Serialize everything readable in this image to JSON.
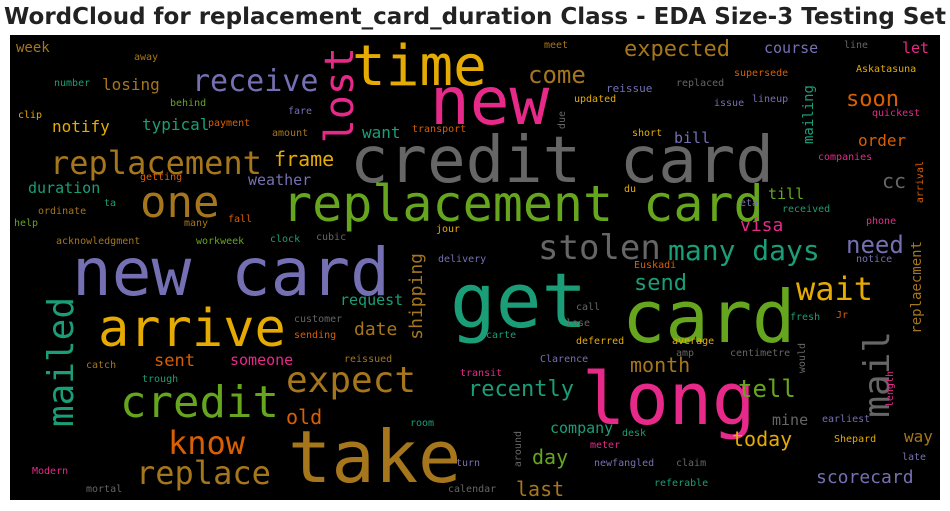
{
  "title": "WordCloud for replacement_card_duration Class - EDA Size-3 Testing Set",
  "palette": {
    "background": "#000000",
    "pink": "#e7298a",
    "orange": "#e6ab02",
    "brown": "#a6761d",
    "gray": "#666666",
    "purple": "#7570b3",
    "green": "#66a61e",
    "teal": "#1b9e77",
    "red": "#d95f02"
  },
  "words": [
    {
      "text": "credit card",
      "color": "#666666"
    },
    {
      "text": "new card",
      "color": "#7570b3"
    },
    {
      "text": "card",
      "color": "#66a61e"
    },
    {
      "text": "get",
      "color": "#1b9e77"
    },
    {
      "text": "take",
      "color": "#a6761d"
    },
    {
      "text": "long",
      "color": "#e7298a"
    },
    {
      "text": "new",
      "color": "#e7298a"
    },
    {
      "text": "replacement card",
      "color": "#66a61e"
    },
    {
      "text": "time",
      "color": "#e6ab02"
    },
    {
      "text": "arrive",
      "color": "#e6ab02"
    },
    {
      "text": "lost",
      "color": "#e7298a"
    },
    {
      "text": "credit",
      "color": "#66a61e"
    },
    {
      "text": "expect",
      "color": "#a6761d"
    },
    {
      "text": "one",
      "color": "#a6761d"
    },
    {
      "text": "stolen",
      "color": "#666666"
    },
    {
      "text": "replacement",
      "color": "#a6761d"
    },
    {
      "text": "replace",
      "color": "#a6761d"
    },
    {
      "text": "mailed",
      "color": "#1b9e77"
    },
    {
      "text": "know",
      "color": "#d95f02"
    },
    {
      "text": "receive",
      "color": "#7570b3"
    },
    {
      "text": "many days",
      "color": "#1b9e77"
    },
    {
      "text": "wait",
      "color": "#e6ab02"
    },
    {
      "text": "mail",
      "color": "#666666"
    },
    {
      "text": "come",
      "color": "#a6761d"
    },
    {
      "text": "expected",
      "color": "#a6761d"
    },
    {
      "text": "soon",
      "color": "#d95f02"
    },
    {
      "text": "need",
      "color": "#7570b3"
    },
    {
      "text": "recently",
      "color": "#1b9e77"
    },
    {
      "text": "tell",
      "color": "#66a61e"
    },
    {
      "text": "month",
      "color": "#a6761d"
    },
    {
      "text": "send",
      "color": "#1b9e77"
    },
    {
      "text": "frame",
      "color": "#e6ab02"
    },
    {
      "text": "scorecard",
      "color": "#7570b3"
    },
    {
      "text": "today",
      "color": "#e6ab02"
    },
    {
      "text": "last",
      "color": "#a6761d"
    },
    {
      "text": "day",
      "color": "#66a61e"
    },
    {
      "text": "shipping",
      "color": "#a6761d"
    },
    {
      "text": "old",
      "color": "#d95f02"
    },
    {
      "text": "visa",
      "color": "#e7298a"
    },
    {
      "text": "cc",
      "color": "#666666"
    },
    {
      "text": "losing",
      "color": "#a6761d"
    },
    {
      "text": "notify",
      "color": "#e6ab02"
    },
    {
      "text": "typical",
      "color": "#1b9e77"
    },
    {
      "text": "duration",
      "color": "#1b9e77"
    },
    {
      "text": "weather",
      "color": "#7570b3"
    },
    {
      "text": "date",
      "color": "#a6761d"
    },
    {
      "text": "sent",
      "color": "#d95f02"
    },
    {
      "text": "someone",
      "color": "#e7298a"
    },
    {
      "text": "request",
      "color": "#1b9e77"
    },
    {
      "text": "want",
      "color": "#1b9e77"
    },
    {
      "text": "course",
      "color": "#7570b3"
    },
    {
      "text": "let",
      "color": "#e7298a"
    },
    {
      "text": "order",
      "color": "#d95f02"
    },
    {
      "text": "bill",
      "color": "#7570b3"
    },
    {
      "text": "till",
      "color": "#66a61e"
    },
    {
      "text": "mine",
      "color": "#666666"
    },
    {
      "text": "way",
      "color": "#a6761d"
    },
    {
      "text": "company",
      "color": "#1b9e77"
    },
    {
      "text": "week",
      "color": "#a6761d"
    },
    {
      "text": "mailing",
      "color": "#1b9e77"
    },
    {
      "text": "replaecment",
      "color": "#a6761d"
    },
    {
      "text": "away",
      "color": "#a6761d"
    },
    {
      "text": "meet",
      "color": "#a6761d"
    },
    {
      "text": "line",
      "color": "#666666"
    },
    {
      "text": "Askatasuna",
      "color": "#e6ab02"
    },
    {
      "text": "number",
      "color": "#1b9e77"
    },
    {
      "text": "reissue",
      "color": "#7570b3"
    },
    {
      "text": "replaced",
      "color": "#666666"
    },
    {
      "text": "supersede",
      "color": "#d95f02"
    },
    {
      "text": "behind",
      "color": "#66a61e"
    },
    {
      "text": "updated",
      "color": "#e6ab02"
    },
    {
      "text": "lineup",
      "color": "#7570b3"
    },
    {
      "text": "issue",
      "color": "#7570b3"
    },
    {
      "text": "quickest",
      "color": "#e7298a"
    },
    {
      "text": "clip",
      "color": "#e6ab02"
    },
    {
      "text": "fare",
      "color": "#7570b3"
    },
    {
      "text": "payment",
      "color": "#d95f02"
    },
    {
      "text": "amount",
      "color": "#a6761d"
    },
    {
      "text": "transport",
      "color": "#d95f02"
    },
    {
      "text": "due",
      "color": "#666666"
    },
    {
      "text": "short",
      "color": "#e6ab02"
    },
    {
      "text": "companies",
      "color": "#e7298a"
    },
    {
      "text": "getting",
      "color": "#d95f02"
    },
    {
      "text": "arrival",
      "color": "#d95f02"
    },
    {
      "text": "du",
      "color": "#e6ab02"
    },
    {
      "text": "eta",
      "color": "#7570b3"
    },
    {
      "text": "ta",
      "color": "#1b9e77"
    },
    {
      "text": "ordinate",
      "color": "#a6761d"
    },
    {
      "text": "many",
      "color": "#a6761d"
    },
    {
      "text": "fall",
      "color": "#d95f02"
    },
    {
      "text": "received",
      "color": "#1b9e77"
    },
    {
      "text": "help",
      "color": "#66a61e"
    },
    {
      "text": "phone",
      "color": "#e7298a"
    },
    {
      "text": "jour",
      "color": "#e6ab02"
    },
    {
      "text": "acknowledgment",
      "color": "#a6761d"
    },
    {
      "text": "workweek",
      "color": "#66a61e"
    },
    {
      "text": "clock",
      "color": "#1b9e77"
    },
    {
      "text": "cubic",
      "color": "#666666"
    },
    {
      "text": "delivery",
      "color": "#7570b3"
    },
    {
      "text": "notice",
      "color": "#7570b3"
    },
    {
      "text": "Euskadi",
      "color": "#d95f02"
    },
    {
      "text": "call",
      "color": "#666666"
    },
    {
      "text": "fresh",
      "color": "#1b9e77"
    },
    {
      "text": "Jr",
      "color": "#d95f02"
    },
    {
      "text": "lose",
      "color": "#666666"
    },
    {
      "text": "customer",
      "color": "#666666"
    },
    {
      "text": "sending",
      "color": "#d95f02"
    },
    {
      "text": "carte",
      "color": "#1b9e77"
    },
    {
      "text": "deferred",
      "color": "#e6ab02"
    },
    {
      "text": "average",
      "color": "#e6ab02"
    },
    {
      "text": "centimetre",
      "color": "#666666"
    },
    {
      "text": "amp",
      "color": "#666666"
    },
    {
      "text": "catch",
      "color": "#a6761d"
    },
    {
      "text": "reissued",
      "color": "#a6761d"
    },
    {
      "text": "Clarence",
      "color": "#7570b3"
    },
    {
      "text": "trough",
      "color": "#1b9e77"
    },
    {
      "text": "transit",
      "color": "#e7298a"
    },
    {
      "text": "would",
      "color": "#666666"
    },
    {
      "text": "earliest",
      "color": "#7570b3"
    },
    {
      "text": "length",
      "color": "#e7298a"
    },
    {
      "text": "room",
      "color": "#1b9e77"
    },
    {
      "text": "around",
      "color": "#666666"
    },
    {
      "text": "desk",
      "color": "#1b9e77"
    },
    {
      "text": "Shepard",
      "color": "#e6ab02"
    },
    {
      "text": "meter",
      "color": "#e7298a"
    },
    {
      "text": "late",
      "color": "#7570b3"
    },
    {
      "text": "Modern",
      "color": "#e7298a"
    },
    {
      "text": "turn",
      "color": "#7570b3"
    },
    {
      "text": "newfangled",
      "color": "#7570b3"
    },
    {
      "text": "claim",
      "color": "#666666"
    },
    {
      "text": "mortal",
      "color": "#666666"
    },
    {
      "text": "calendar",
      "color": "#666666"
    },
    {
      "text": "referable",
      "color": "#1b9e77"
    }
  ]
}
